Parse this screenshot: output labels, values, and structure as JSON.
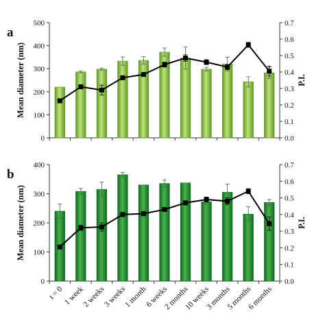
{
  "chart_data": [
    {
      "type": "bar",
      "panel_label": "a",
      "categories": [
        "t = 0",
        "1 week",
        "2 weeks",
        "3 weeks",
        "1 month",
        "6 weeks",
        "2 months",
        "10 weeks",
        "3 months",
        "5 months",
        "6 months"
      ],
      "series": [
        {
          "values": [
            220,
            286,
            298,
            333,
            336,
            372,
            346,
            298,
            320,
            243,
            282
          ],
          "error": [
            0,
            4,
            4,
            18,
            16,
            18,
            48,
            8,
            30,
            22,
            25
          ]
        }
      ],
      "line_series": [
        {
          "values": [
            0.225,
            0.31,
            0.29,
            0.365,
            0.385,
            0.445,
            0.485,
            0.46,
            0.43,
            0.565,
            0.405
          ],
          "error": [
            0,
            0.01,
            0.03,
            0.01,
            0.01,
            0.015,
            0.02,
            0.015,
            0.015,
            0.015,
            0.03
          ]
        }
      ],
      "ylabel": "Mean diameter (nm)",
      "y2label": "P.I.",
      "ylim": [
        0,
        500
      ],
      "y2lim": [
        0,
        0.7
      ],
      "yticks": [
        "0",
        "100",
        "200",
        "300",
        "400",
        "500"
      ],
      "y2ticks": [
        "0.0",
        "0.1",
        "0.2",
        "0.3",
        "0.4",
        "0.5",
        "0.6",
        "0.7"
      ],
      "colors": {
        "bar_light": "#bfe27a",
        "bar_dark": "#5f9a24",
        "line": "#000000"
      }
    },
    {
      "type": "bar",
      "panel_label": "b",
      "categories": [
        "t = 0",
        "1 week",
        "2 weeks",
        "3 weeks",
        "1 month",
        "6 weeks",
        "2 months",
        "10 weeks",
        "3 months",
        "5 months",
        "6 months"
      ],
      "series": [
        {
          "values": [
            240,
            308,
            315,
            365,
            330,
            335,
            337,
            272,
            305,
            230,
            270
          ],
          "error": [
            25,
            10,
            25,
            8,
            0,
            12,
            0,
            8,
            28,
            25,
            10
          ]
        }
      ],
      "line_series": [
        {
          "values": [
            0.205,
            0.32,
            0.325,
            0.4,
            0.405,
            0.43,
            0.47,
            0.49,
            0.48,
            0.54,
            0.345
          ],
          "error": [
            0,
            0.015,
            0.025,
            0.01,
            0.01,
            0.01,
            0.01,
            0.015,
            0.02,
            0.015,
            0.04
          ]
        }
      ],
      "ylabel": "Mean diameter (nm)",
      "y2label": "P.I.",
      "ylim": [
        0,
        400
      ],
      "y2lim": [
        0,
        0.7
      ],
      "yticks": [
        "0",
        "100",
        "200",
        "300",
        "400"
      ],
      "y2ticks": [
        "0.0",
        "0.1",
        "0.2",
        "0.3",
        "0.4",
        "0.5",
        "0.6",
        "0.7"
      ],
      "colors": {
        "bar_light": "#48b34a",
        "bar_dark": "#0f6a22",
        "line": "#000000"
      }
    }
  ]
}
